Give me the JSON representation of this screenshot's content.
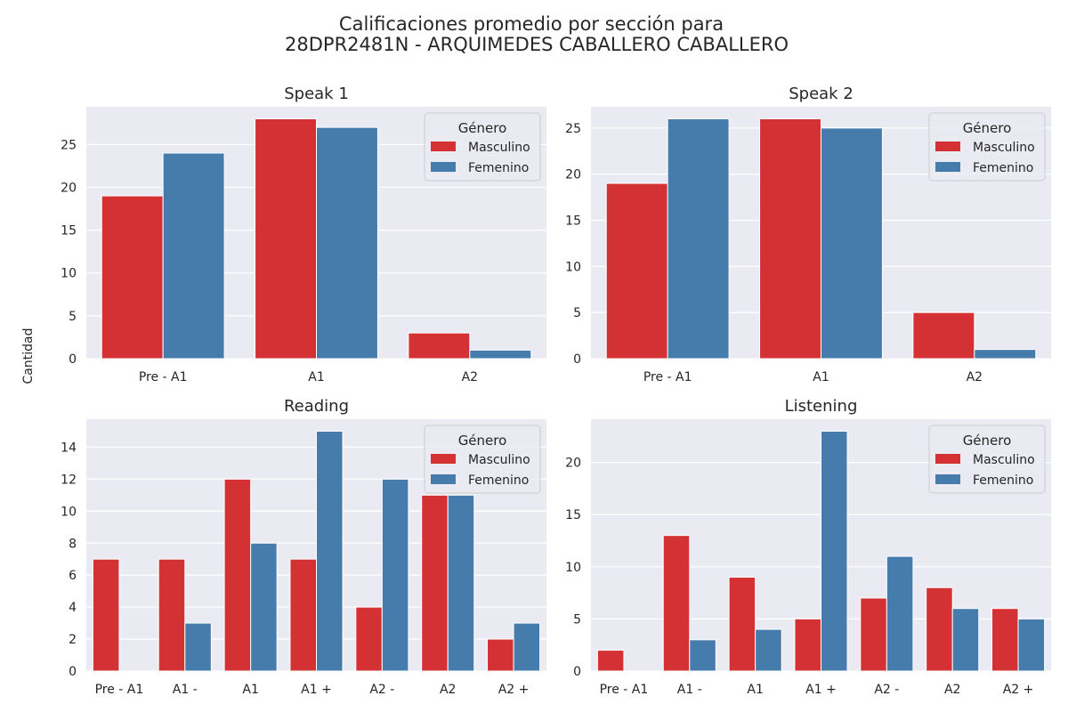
{
  "suptitle": {
    "line1": "Calificaciones promedio por sección para",
    "line2": "28DPR2481N - ARQUIMEDES CABALLERO CABALLERO"
  },
  "ylabel": "Cantidad",
  "colors": {
    "Masculino": "#d33133",
    "Femenino": "#467cac"
  },
  "chart_data": [
    {
      "type": "bar",
      "title": "Speak 1",
      "categories": [
        "Pre - A1",
        "A1",
        "A2"
      ],
      "series": [
        {
          "name": "Masculino",
          "values": [
            19,
            28,
            3
          ]
        },
        {
          "name": "Femenino",
          "values": [
            24,
            27,
            1
          ]
        }
      ],
      "ylim": [
        0,
        29.4
      ],
      "yticks": [
        0,
        5,
        10,
        15,
        20,
        25
      ],
      "ylabel": "Cantidad",
      "grid": true,
      "legend": {
        "title": "Género",
        "entries": [
          "Masculino",
          "Femenino"
        ],
        "placement": "top-right"
      }
    },
    {
      "type": "bar",
      "title": "Speak 2",
      "categories": [
        "Pre - A1",
        "A1",
        "A2"
      ],
      "series": [
        {
          "name": "Masculino",
          "values": [
            19,
            26,
            5
          ]
        },
        {
          "name": "Femenino",
          "values": [
            26,
            25,
            1
          ]
        }
      ],
      "ylim": [
        0,
        27.3
      ],
      "yticks": [
        0,
        5,
        10,
        15,
        20,
        25
      ],
      "grid": true,
      "legend": {
        "title": "Género",
        "entries": [
          "Masculino",
          "Femenino"
        ],
        "placement": "top-right"
      }
    },
    {
      "type": "bar",
      "title": "Reading",
      "categories": [
        "Pre - A1",
        "A1 -",
        "A1",
        "A1 +",
        "A2 -",
        "A2",
        "A2 +"
      ],
      "series": [
        {
          "name": "Masculino",
          "values": [
            7,
            7,
            12,
            7,
            4,
            11,
            2
          ]
        },
        {
          "name": "Femenino",
          "values": [
            0,
            3,
            8,
            15,
            12,
            11,
            3
          ]
        }
      ],
      "ylim": [
        0,
        15.75
      ],
      "yticks": [
        0,
        2,
        4,
        6,
        8,
        10,
        12,
        14
      ],
      "grid": true,
      "legend": {
        "title": "Género",
        "entries": [
          "Masculino",
          "Femenino"
        ],
        "placement": "top-right"
      }
    },
    {
      "type": "bar",
      "title": "Listening",
      "categories": [
        "Pre - A1",
        "A1 -",
        "A1",
        "A1 +",
        "A2 -",
        "A2",
        "A2 +"
      ],
      "series": [
        {
          "name": "Masculino",
          "values": [
            2,
            13,
            9,
            5,
            7,
            8,
            6
          ]
        },
        {
          "name": "Femenino",
          "values": [
            0,
            3,
            4,
            23,
            11,
            6,
            5
          ]
        }
      ],
      "ylim": [
        0,
        24.15
      ],
      "yticks": [
        0,
        5,
        10,
        15,
        20
      ],
      "grid": true,
      "legend": {
        "title": "Género",
        "entries": [
          "Masculino",
          "Femenino"
        ],
        "placement": "top-right"
      }
    }
  ]
}
